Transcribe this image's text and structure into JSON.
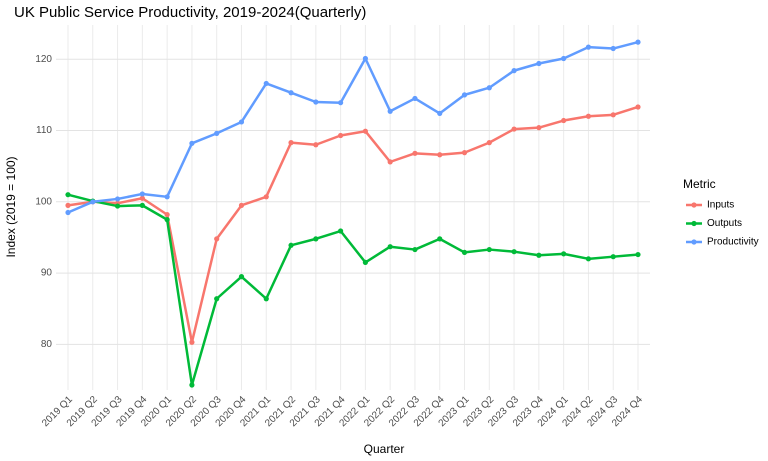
{
  "chart_data": {
    "type": "line",
    "title": "UK Public Service Productivity, 2019-2024(Quarterly)",
    "x_label": "Quarter",
    "y_label": "Index (2019 = 100)",
    "legend_title": "Metric",
    "legend_position": "right",
    "categories": [
      "2019 Q1",
      "2019 Q2",
      "2019 Q3",
      "2019 Q4",
      "2020 Q1",
      "2020 Q2",
      "2020 Q3",
      "2020 Q4",
      "2021 Q1",
      "2021 Q2",
      "2021 Q3",
      "2021 Q4",
      "2022 Q1",
      "2022 Q2",
      "2022 Q3",
      "2022 Q4",
      "2023 Q1",
      "2023 Q2",
      "2023 Q3",
      "2023 Q4",
      "2024 Q1",
      "2024 Q2",
      "2024 Q3",
      "2024 Q4"
    ],
    "series": [
      {
        "name": "Inputs",
        "color": "#F8766D",
        "values": [
          99.5,
          100.0,
          99.8,
          100.5,
          98.2,
          80.3,
          94.8,
          99.5,
          100.7,
          108.3,
          108.0,
          109.3,
          109.9,
          105.6,
          106.8,
          106.6,
          106.9,
          108.3,
          110.2,
          110.4,
          111.4,
          112.0,
          112.2,
          113.3
        ]
      },
      {
        "name": "Outputs",
        "color": "#00BA38",
        "values": [
          101.0,
          100.1,
          99.4,
          99.5,
          97.5,
          74.3,
          86.4,
          89.5,
          86.4,
          93.9,
          94.8,
          95.9,
          91.5,
          93.7,
          93.3,
          94.8,
          92.9,
          93.3,
          93.0,
          92.5,
          92.7,
          92.0,
          92.3,
          92.6
        ]
      },
      {
        "name": "Productivity",
        "color": "#619CFF",
        "values": [
          98.5,
          100.0,
          100.4,
          101.1,
          100.7,
          108.2,
          109.6,
          111.2,
          116.6,
          115.3,
          114.0,
          113.9,
          120.1,
          112.7,
          114.5,
          112.4,
          115.0,
          116.0,
          118.4,
          119.4,
          120.1,
          121.7,
          121.5,
          122.4
        ]
      }
    ],
    "ylim": [
      73.6,
      124.8
    ],
    "yticks": [
      80,
      90,
      100,
      110,
      120
    ],
    "grid": true
  }
}
